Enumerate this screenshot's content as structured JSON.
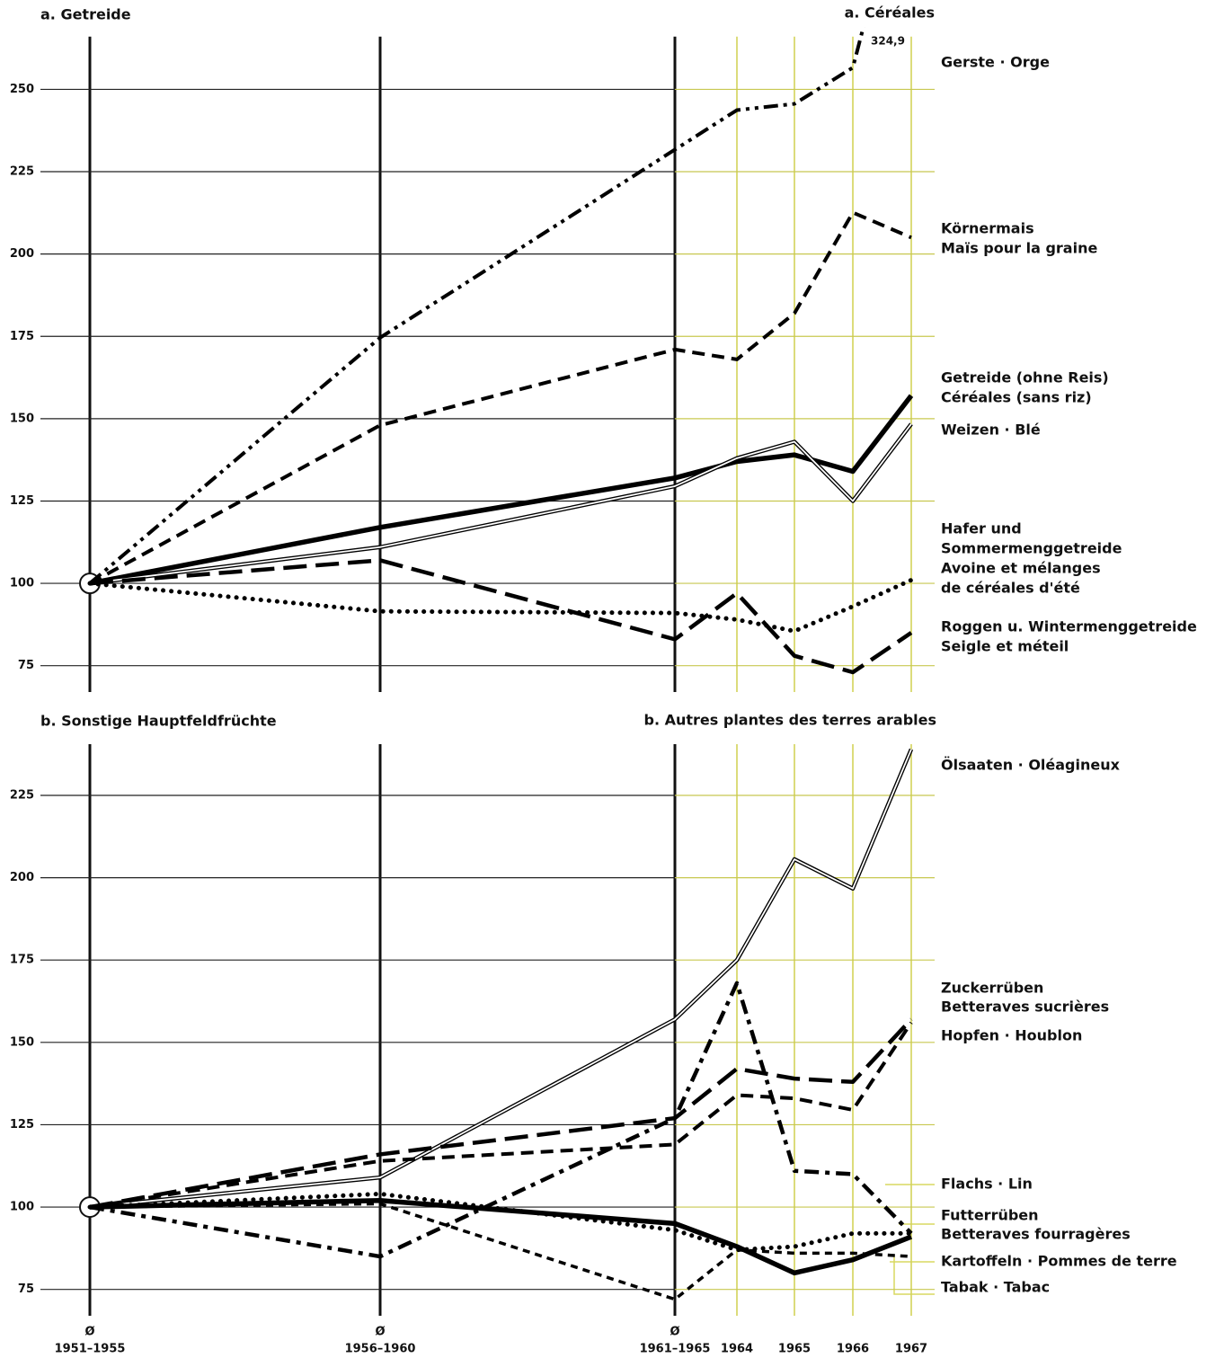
{
  "chart_data": [
    {
      "type": "line",
      "title": "a. Getreide",
      "title_right": "a. Céréales",
      "ylim": [
        67,
        266
      ],
      "yticks": [
        75,
        100,
        125,
        150,
        175,
        200,
        225,
        250
      ],
      "grid": true,
      "series": [
        {
          "name": [
            "Gerste · Orge"
          ],
          "style": "dashdotdot",
          "color": "#000000",
          "values": [
            100,
            174.6,
            231.7,
            243.7,
            245.6,
            256.6,
            324.9
          ],
          "value_labels": [
            null,
            null,
            null,
            null,
            null,
            null,
            "324,9"
          ]
        },
        {
          "name": [
            "Körnermais",
            "Maïs pour la graine"
          ],
          "style": "dashed",
          "color": "#000000",
          "values": [
            100,
            148,
            171,
            168,
            182,
            212.6,
            205
          ]
        },
        {
          "name": [
            "Getreide (ohne Reis)",
            "Céréales (sans riz)"
          ],
          "style": "solid",
          "color": "#000000",
          "values": [
            100,
            117,
            132,
            137,
            139,
            134,
            157
          ]
        },
        {
          "name": [
            "Weizen · Blé"
          ],
          "style": "double",
          "color": "#000000",
          "values": [
            100,
            111,
            129.5,
            138,
            143,
            125,
            148.4
          ]
        },
        {
          "name": [
            "Hafer und",
            "Sommermenggetreide",
            "Avoine et mélanges",
            "de céréales d'été"
          ],
          "style": "dotted",
          "color": "#000000",
          "values": [
            100,
            91.5,
            91,
            89,
            85.5,
            93,
            101
          ]
        },
        {
          "name": [
            "Roggen u. Wintermenggetreide",
            "Seigle et méteil"
          ],
          "style": "longdash",
          "color": "#000000",
          "values": [
            100,
            107,
            83,
            97,
            78,
            73,
            85
          ]
        }
      ]
    },
    {
      "type": "line",
      "title": "b. Sonstige Hauptfeldfrüchte",
      "title_right": "b. Autres plantes des terres arables",
      "categories": [
        [
          "Ø",
          "1951–1955"
        ],
        [
          "Ø",
          "1956–1960"
        ],
        [
          "Ø",
          "1961–1965"
        ],
        [
          "1964"
        ],
        [
          "1965"
        ],
        [
          "1966"
        ],
        [
          "1967"
        ]
      ],
      "ylim": [
        67,
        240
      ],
      "yticks": [
        75,
        100,
        125,
        150,
        175,
        200,
        225
      ],
      "grid": true,
      "series": [
        {
          "name": [
            "Ölsaaten · Oléagineux"
          ],
          "style": "double",
          "color": "#000000",
          "values": [
            100,
            109,
            157,
            175,
            205.6,
            196.7,
            239
          ]
        },
        {
          "name": [
            "Zuckerrüben",
            "Betteraves sucrières"
          ],
          "style": "longdash",
          "color": "#000000",
          "values": [
            100,
            116,
            127,
            142,
            139,
            138,
            157
          ]
        },
        {
          "name": [
            "Hopfen · Houblon"
          ],
          "style": "dashdot",
          "color": "#000000",
          "values": [
            100,
            85,
            127,
            168,
            111,
            110,
            92
          ]
        },
        {
          "name": [
            "Flachs · Lin"
          ],
          "style": "dashed",
          "color": "#000000",
          "values": [
            100,
            114,
            119,
            134,
            133,
            129.5,
            156
          ]
        },
        {
          "name": [
            "Futterrüben",
            "Betteraves fourragères"
          ],
          "style": "dotted",
          "color": "#000000",
          "values": [
            100,
            104,
            93,
            87,
            88,
            92,
            92
          ]
        },
        {
          "name": [
            "Kartoffeln · Pommes de terre"
          ],
          "style": "shortdash",
          "color": "#000000",
          "values": [
            100,
            101,
            72,
            87,
            86,
            86,
            85
          ]
        },
        {
          "name": [
            "Tabak · Tabac"
          ],
          "style": "solid",
          "color": "#000000",
          "values": [
            100,
            102,
            95,
            88,
            80,
            84,
            91
          ]
        }
      ]
    }
  ]
}
